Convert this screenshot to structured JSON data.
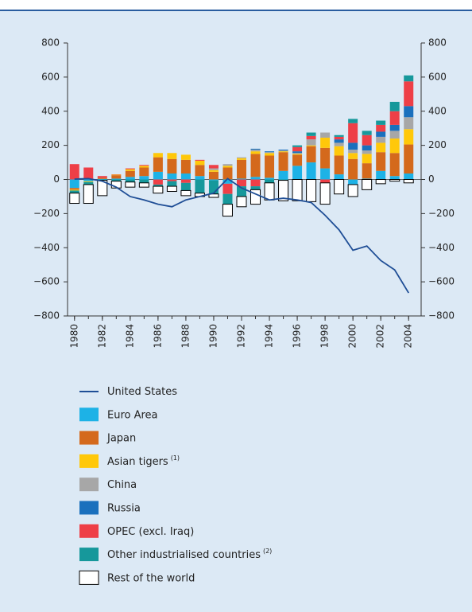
{
  "chart_data": {
    "type": "stacked-bar-line",
    "x": [
      1980,
      1981,
      1982,
      1983,
      1984,
      1985,
      1986,
      1987,
      1988,
      1989,
      1990,
      1991,
      1992,
      1993,
      1994,
      1995,
      1996,
      1997,
      1998,
      1999,
      2000,
      2001,
      2002,
      2003,
      2004
    ],
    "xlim": [
      1979.5,
      2004.9
    ],
    "xticks": [
      1980,
      1982,
      1984,
      1986,
      1988,
      1990,
      1992,
      1994,
      1996,
      1998,
      2000,
      2002,
      2004
    ],
    "ylim": [
      -800,
      800
    ],
    "yticks": [
      {
        "value": -800,
        "label": "−800"
      },
      {
        "value": -600,
        "label": "−600"
      },
      {
        "value": -400,
        "label": "−400"
      },
      {
        "value": -200,
        "label": "−200"
      },
      0,
      200,
      400,
      600,
      800
    ],
    "y2lim": [
      -800,
      800
    ],
    "y2ticks": [
      {
        "value": -800,
        "label": "−800"
      },
      {
        "value": -600,
        "label": "−600"
      },
      {
        "value": -400,
        "label": "−400"
      },
      {
        "value": -200,
        "label": "−200"
      },
      0,
      200,
      400,
      600,
      800
    ],
    "series": [
      {
        "name": "United States",
        "kind": "line",
        "color": "#1f4e96",
        "values": [
          2,
          5,
          -10,
          -45,
          -100,
          -120,
          -145,
          -160,
          -120,
          -100,
          -80,
          5,
          -50,
          -85,
          -120,
          -110,
          -120,
          -135,
          -210,
          -295,
          -415,
          -390,
          -475,
          -530,
          -665
        ]
      },
      {
        "name": "Euro Area",
        "color": "#1db2e6",
        "values": [
          -50,
          -10,
          3,
          5,
          15,
          20,
          45,
          35,
          35,
          20,
          -5,
          -25,
          5,
          15,
          10,
          50,
          80,
          100,
          65,
          30,
          -30,
          5,
          50,
          20,
          35
        ]
      },
      {
        "name": "Japan",
        "color": "#d4691c",
        "values": [
          -10,
          5,
          7,
          20,
          35,
          50,
          85,
          85,
          80,
          65,
          45,
          70,
          110,
          135,
          130,
          110,
          65,
          95,
          120,
          110,
          120,
          90,
          110,
          135,
          170
        ]
      },
      {
        "name": "Asian tigers",
        "note": "(1)",
        "color": "#ffc80a",
        "values": [
          -5,
          -5,
          0,
          3,
          10,
          10,
          25,
          35,
          30,
          25,
          10,
          10,
          10,
          15,
          15,
          5,
          5,
          5,
          60,
          55,
          35,
          55,
          55,
          85,
          90
        ]
      },
      {
        "name": "China",
        "color": "#a7a7a7",
        "values": [
          0,
          0,
          0,
          0,
          0,
          0,
          0,
          0,
          0,
          0,
          10,
          10,
          5,
          10,
          5,
          5,
          5,
          35,
          30,
          20,
          20,
          20,
          35,
          45,
          70
        ]
      },
      {
        "name": "Russia",
        "color": "#1a70bd",
        "values": [
          0,
          0,
          0,
          0,
          0,
          0,
          0,
          0,
          0,
          0,
          0,
          0,
          0,
          5,
          5,
          5,
          10,
          0,
          0,
          20,
          40,
          30,
          30,
          35,
          65
        ]
      },
      {
        "name": "OPEC (excl. Iraq)",
        "color": "#ee3f47",
        "values": [
          90,
          65,
          10,
          2,
          5,
          5,
          -30,
          -10,
          -20,
          5,
          20,
          -60,
          -40,
          -40,
          0,
          0,
          25,
          20,
          -20,
          15,
          115,
          60,
          40,
          80,
          145
        ]
      },
      {
        "name": "Other industrialised countries",
        "note": "(2)",
        "color": "#16989b",
        "values": [
          -15,
          -15,
          -5,
          -10,
          -15,
          -20,
          -10,
          -30,
          -45,
          -80,
          -80,
          -60,
          -60,
          -20,
          -20,
          -5,
          10,
          20,
          0,
          10,
          25,
          25,
          25,
          55,
          35
        ]
      },
      {
        "name": "Rest of the world",
        "color": "#ffffff",
        "outline": "#000000",
        "values": [
          -60,
          -110,
          -90,
          -40,
          -30,
          -25,
          -40,
          -30,
          -30,
          -20,
          -20,
          -70,
          -60,
          -85,
          -100,
          -120,
          -125,
          -130,
          -125,
          -85,
          -70,
          -60,
          -25,
          -10,
          -20
        ]
      }
    ]
  }
}
